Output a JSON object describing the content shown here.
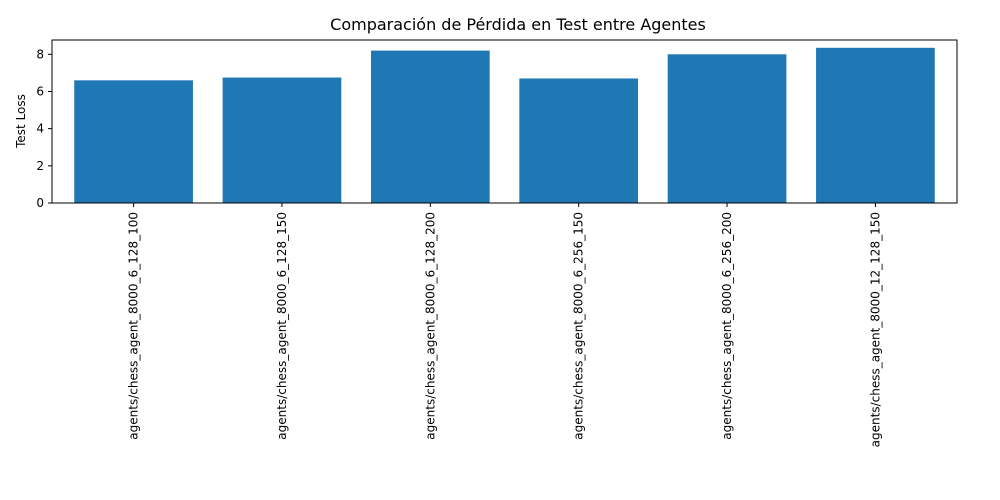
{
  "chart_data": {
    "type": "bar",
    "title": "Comparación de Pérdida en Test entre Agentes",
    "xlabel": "",
    "ylabel": "Test Loss",
    "categories": [
      "agents/chess_agent_8000_6_128_100",
      "agents/chess_agent_8000_6_128_150",
      "agents/chess_agent_8000_6_128_200",
      "agents/chess_agent_8000_6_256_150",
      "agents/chess_agent_8000_6_256_200",
      "agents/chess_agent_8000_12_128_150"
    ],
    "values": [
      6.6,
      6.75,
      8.2,
      6.7,
      8.0,
      8.35
    ],
    "ylim": [
      0,
      8.77
    ],
    "yticks": [
      0,
      2,
      4,
      6,
      8
    ],
    "grid": false,
    "bar_color": "#1f77b4"
  }
}
